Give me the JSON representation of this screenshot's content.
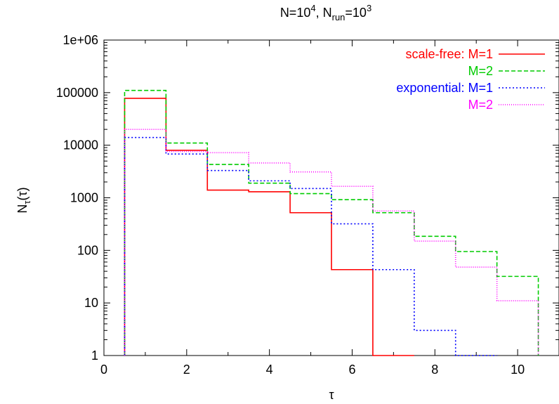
{
  "chart_data": {
    "type": "histogram-step",
    "title": "N=10^4, N_run=10^3",
    "title_parts": {
      "a": "N=10",
      "a_sup": "4",
      "b": ", N",
      "b_sub": "run",
      "c": "=10",
      "c_sup": "3"
    },
    "xlabel": "τ",
    "ylabel": {
      "main": "N",
      "sub": "τ",
      "rest": "(τ)"
    },
    "xlim": [
      0,
      11
    ],
    "ylim": [
      1,
      1000000
    ],
    "yscale": "log",
    "x_ticks": [
      0,
      2,
      4,
      6,
      8,
      10
    ],
    "x_tick_labels": [
      "0",
      "2",
      "4",
      "6",
      "8",
      "10"
    ],
    "y_ticks": [
      1,
      10,
      100,
      1000,
      10000,
      100000,
      1000000
    ],
    "y_tick_labels": [
      "1",
      "10",
      "100",
      "1000",
      "10000",
      "100000",
      "1e+06"
    ],
    "grid": false,
    "legend_position": "top-right",
    "legend_header_scale_free": "scale-free: M=1",
    "legend_header_exponential": "exponential: M=1",
    "series": [
      {
        "name": "scale-free: M=1",
        "color": "#ff0000",
        "dash": "solid",
        "bins": [
          [
            0.5,
            1.5,
            78000
          ],
          [
            1.5,
            2.5,
            8000
          ],
          [
            2.5,
            3.5,
            1400
          ],
          [
            3.5,
            4.5,
            1300
          ],
          [
            4.5,
            5.5,
            520
          ],
          [
            5.5,
            6.5,
            43
          ],
          [
            6.5,
            7.5,
            1
          ]
        ]
      },
      {
        "name": "M=2",
        "color": "#00cc00",
        "dash": "dashed",
        "bins": [
          [
            0.5,
            1.5,
            110000
          ],
          [
            1.5,
            2.5,
            11000
          ],
          [
            2.5,
            3.5,
            4300
          ],
          [
            3.5,
            4.5,
            1900
          ],
          [
            4.5,
            5.5,
            1200
          ],
          [
            5.5,
            6.5,
            920
          ],
          [
            6.5,
            7.5,
            520
          ],
          [
            7.5,
            8.5,
            185
          ],
          [
            8.5,
            9.5,
            95
          ],
          [
            9.5,
            10.5,
            32
          ]
        ]
      },
      {
        "name": "exponential: M=1",
        "color": "#0000ff",
        "dash": "dotted",
        "bins": [
          [
            0.5,
            1.5,
            14000
          ],
          [
            1.5,
            2.5,
            6800
          ],
          [
            2.5,
            3.5,
            3300
          ],
          [
            3.5,
            4.5,
            2100
          ],
          [
            4.5,
            5.5,
            1500
          ],
          [
            5.5,
            6.5,
            320
          ],
          [
            6.5,
            7.5,
            43
          ],
          [
            7.5,
            8.5,
            3
          ],
          [
            8.5,
            9.5,
            1
          ]
        ]
      },
      {
        "name": "M=2",
        "color": "#ff00ff",
        "dash": "fine-dotted",
        "bins": [
          [
            0.5,
            1.5,
            20000
          ],
          [
            1.5,
            2.5,
            7600
          ],
          [
            2.5,
            3.5,
            7200
          ],
          [
            3.5,
            4.5,
            4600
          ],
          [
            4.5,
            5.5,
            3100
          ],
          [
            5.5,
            6.5,
            1650
          ],
          [
            6.5,
            7.5,
            560
          ],
          [
            7.5,
            8.5,
            150
          ],
          [
            8.5,
            9.5,
            48
          ],
          [
            9.5,
            10.5,
            11
          ]
        ]
      }
    ]
  }
}
